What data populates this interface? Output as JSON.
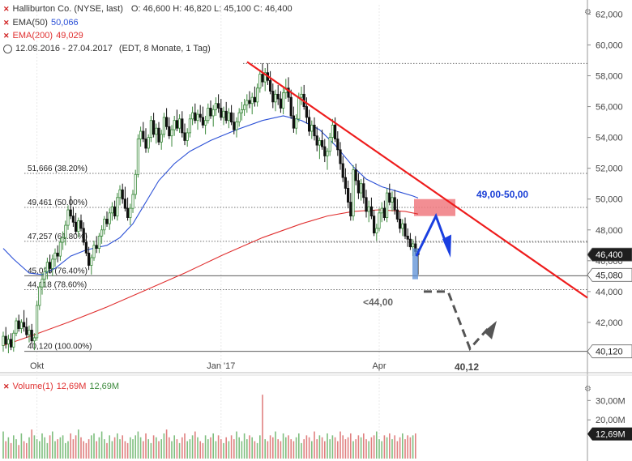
{
  "header": {
    "symbol": "Halliburton Co. (NYSE, last)",
    "ohlc": "O: 46,600   H: 46,820   L: 45,100   C: 46,400",
    "ema50_label": "EMA(50)",
    "ema50_value": "50,066",
    "ema200_label": "EMA(200)",
    "ema200_value": "49,029",
    "range_text": "12.09.2016 - 27.04.2017",
    "range_info": "(EDT, 8 Monate, 1 Tag)"
  },
  "volume_header": {
    "label": "Volume(1)",
    "value1": "12,69M",
    "value2": "12,69M"
  },
  "colors": {
    "up": "#3c8a3c",
    "down": "#111111",
    "ema50": "#2a4fd6",
    "ema200": "#e03030",
    "trendline": "#ee1c1c",
    "vol_up": "#7fbf7f",
    "vol_down": "#e08080",
    "target_zone": "#f07a80",
    "arrow_blue": "#1a3fe0",
    "arrow_grey": "#555555",
    "last_marker": "#1e1e1e"
  },
  "chart_data": {
    "type": "candlestick",
    "y_axis": {
      "min": 39,
      "max": 62.6,
      "ticks": [
        "62,000",
        "60,000",
        "58,000",
        "56,000",
        "54,000",
        "52,000",
        "50,000",
        "48,000",
        "46,000",
        "44,000",
        "42,000",
        "40,000"
      ],
      "tick_values": [
        62,
        60,
        58,
        56,
        54,
        52,
        50,
        48,
        46,
        44,
        42,
        40
      ]
    },
    "x_axis": {
      "labels": [
        "Okt",
        "Jan '17",
        "Apr"
      ],
      "label_index": [
        13,
        84,
        145
      ]
    },
    "fib_levels": [
      {
        "value": 51.666,
        "label": "51,666 (38.20%)"
      },
      {
        "value": 49.461,
        "label": "49,461 (50.00%)"
      },
      {
        "value": 47.257,
        "label": "47,257 (61.80%)"
      },
      {
        "value": 45.029,
        "label": "45,029 (76.40%)"
      },
      {
        "value": 44.118,
        "label": "44,118 (78.60%)"
      },
      {
        "value": 40.12,
        "label": "40,120 (100.00%)"
      }
    ],
    "price_markers": [
      {
        "value": 58.8,
        "label": ""
      },
      {
        "value": 47.2,
        "label": ""
      },
      {
        "value": 45.08,
        "label": "45,080"
      },
      {
        "value": 46.4,
        "label": "46,400"
      },
      {
        "value": 40.12,
        "label": "40,120"
      }
    ],
    "annotations": [
      {
        "text": "49,00-50,00"
      },
      {
        "text": "<44,00"
      },
      {
        "text": "40,12"
      }
    ],
    "candles": [
      [
        40.5,
        41.4,
        40.1,
        41.1
      ],
      [
        41.1,
        41.7,
        40.3,
        40.6
      ],
      [
        40.6,
        41.2,
        40.0,
        40.9
      ],
      [
        40.9,
        41.3,
        40.2,
        40.4
      ],
      [
        40.4,
        41.5,
        40.1,
        41.3
      ],
      [
        41.3,
        42.3,
        41.1,
        42.1
      ],
      [
        42.1,
        42.5,
        41.4,
        41.6
      ],
      [
        41.6,
        42.2,
        41.3,
        42.0
      ],
      [
        42.0,
        42.8,
        41.4,
        41.7
      ],
      [
        41.7,
        42.3,
        41.0,
        41.2
      ],
      [
        41.2,
        41.8,
        40.7,
        41.5
      ],
      [
        41.5,
        41.9,
        40.6,
        40.8
      ],
      [
        40.8,
        41.3,
        40.2,
        41.0
      ],
      [
        41.0,
        43.4,
        40.8,
        43.1
      ],
      [
        43.1,
        44.6,
        42.8,
        44.3
      ],
      [
        44.3,
        45.2,
        43.8,
        44.8
      ],
      [
        44.8,
        45.6,
        44.3,
        45.3
      ],
      [
        45.3,
        46.2,
        44.8,
        45.9
      ],
      [
        45.9,
        46.4,
        45.2,
        45.5
      ],
      [
        45.5,
        46.4,
        45.0,
        46.1
      ],
      [
        46.1,
        46.8,
        45.6,
        46.5
      ],
      [
        46.5,
        47.0,
        45.9,
        46.3
      ],
      [
        46.3,
        47.5,
        46.0,
        47.2
      ],
      [
        47.2,
        47.9,
        46.7,
        47.5
      ],
      [
        47.5,
        48.6,
        47.0,
        48.3
      ],
      [
        48.3,
        49.6,
        48.0,
        49.3
      ],
      [
        49.3,
        50.2,
        48.7,
        48.9
      ],
      [
        48.9,
        49.5,
        48.2,
        48.5
      ],
      [
        48.5,
        49.1,
        47.7,
        47.9
      ],
      [
        47.9,
        48.8,
        47.5,
        48.6
      ],
      [
        48.6,
        49.0,
        47.9,
        48.1
      ],
      [
        48.1,
        48.5,
        47.0,
        47.2
      ],
      [
        47.2,
        47.8,
        46.3,
        46.5
      ],
      [
        46.5,
        46.9,
        45.4,
        45.7
      ],
      [
        45.7,
        46.4,
        45.1,
        46.2
      ],
      [
        46.2,
        47.3,
        46.0,
        47.0
      ],
      [
        47.0,
        47.6,
        46.5,
        46.8
      ],
      [
        46.8,
        47.8,
        46.5,
        47.6
      ],
      [
        47.6,
        48.3,
        47.1,
        48.0
      ],
      [
        48.0,
        48.9,
        47.7,
        48.7
      ],
      [
        48.7,
        49.2,
        48.2,
        48.4
      ],
      [
        48.4,
        49.4,
        48.0,
        49.1
      ],
      [
        49.1,
        49.8,
        48.6,
        49.5
      ],
      [
        49.5,
        49.9,
        48.7,
        48.9
      ],
      [
        48.9,
        50.4,
        48.6,
        50.1
      ],
      [
        50.1,
        50.9,
        49.6,
        50.6
      ],
      [
        50.6,
        51.0,
        49.7,
        50.0
      ],
      [
        50.0,
        50.8,
        49.2,
        49.4
      ],
      [
        49.4,
        50.1,
        48.6,
        48.8
      ],
      [
        48.8,
        49.7,
        48.3,
        49.4
      ],
      [
        49.4,
        50.6,
        49.1,
        50.3
      ],
      [
        50.3,
        51.9,
        50.0,
        51.6
      ],
      [
        51.6,
        54.2,
        51.4,
        53.9
      ],
      [
        53.9,
        54.7,
        53.4,
        54.4
      ],
      [
        54.4,
        55.0,
        53.7,
        53.9
      ],
      [
        53.9,
        54.6,
        53.0,
        53.3
      ],
      [
        53.3,
        54.2,
        53.0,
        54.0
      ],
      [
        54.0,
        55.4,
        53.7,
        55.1
      ],
      [
        55.1,
        55.6,
        54.0,
        54.2
      ],
      [
        54.2,
        54.9,
        53.6,
        54.6
      ],
      [
        54.6,
        55.0,
        53.5,
        53.7
      ],
      [
        53.7,
        54.5,
        53.2,
        54.2
      ],
      [
        54.2,
        55.6,
        54.0,
        55.3
      ],
      [
        55.3,
        55.9,
        54.5,
        54.7
      ],
      [
        54.7,
        55.3,
        53.9,
        54.1
      ],
      [
        54.1,
        54.8,
        53.4,
        54.5
      ],
      [
        54.5,
        55.4,
        54.1,
        55.1
      ],
      [
        55.1,
        55.8,
        54.4,
        54.6
      ],
      [
        54.6,
        55.5,
        54.3,
        55.2
      ],
      [
        55.2,
        55.7,
        54.0,
        54.3
      ],
      [
        54.3,
        54.9,
        53.5,
        53.8
      ],
      [
        53.8,
        54.6,
        53.4,
        54.3
      ],
      [
        54.3,
        55.5,
        54.0,
        55.2
      ],
      [
        55.2,
        56.0,
        54.8,
        55.6
      ],
      [
        55.6,
        56.2,
        54.9,
        55.1
      ],
      [
        55.1,
        55.8,
        54.5,
        55.5
      ],
      [
        55.5,
        56.1,
        55.0,
        55.3
      ],
      [
        55.3,
        56.0,
        54.6,
        54.8
      ],
      [
        54.8,
        55.4,
        54.2,
        55.1
      ],
      [
        55.1,
        56.2,
        54.9,
        55.9
      ],
      [
        55.9,
        56.4,
        55.2,
        55.4
      ],
      [
        55.4,
        56.1,
        54.7,
        55.8
      ],
      [
        55.8,
        56.6,
        55.4,
        56.2
      ],
      [
        56.2,
        56.8,
        55.6,
        55.9
      ],
      [
        55.9,
        56.5,
        55.1,
        55.3
      ],
      [
        55.3,
        56.0,
        54.8,
        55.7
      ],
      [
        55.7,
        56.3,
        54.9,
        55.1
      ],
      [
        55.1,
        55.9,
        54.6,
        55.6
      ],
      [
        55.6,
        56.1,
        54.8,
        55.0
      ],
      [
        55.0,
        55.6,
        54.2,
        54.5
      ],
      [
        54.5,
        55.3,
        54.0,
        55.0
      ],
      [
        55.0,
        55.9,
        54.7,
        55.6
      ],
      [
        55.6,
        56.3,
        55.1,
        55.8
      ],
      [
        55.8,
        56.5,
        55.4,
        56.1
      ],
      [
        56.1,
        56.8,
        55.6,
        56.4
      ],
      [
        56.4,
        57.0,
        55.9,
        56.2
      ],
      [
        56.2,
        56.9,
        55.5,
        56.6
      ],
      [
        56.6,
        57.3,
        56.0,
        56.3
      ],
      [
        56.3,
        57.5,
        56.0,
        57.2
      ],
      [
        57.2,
        58.4,
        56.9,
        58.1
      ],
      [
        58.1,
        58.8,
        57.3,
        57.6
      ],
      [
        57.6,
        58.5,
        57.0,
        58.2
      ],
      [
        58.2,
        58.8,
        57.4,
        57.7
      ],
      [
        57.7,
        58.3,
        56.8,
        57.0
      ],
      [
        57.0,
        57.5,
        55.9,
        56.3
      ],
      [
        56.3,
        57.1,
        55.7,
        56.8
      ],
      [
        56.8,
        57.4,
        56.1,
        56.5
      ],
      [
        56.5,
        57.0,
        55.6,
        55.9
      ],
      [
        55.9,
        57.2,
        55.5,
        56.9
      ],
      [
        56.9,
        57.8,
        56.5,
        57.2
      ],
      [
        57.2,
        57.9,
        56.3,
        56.6
      ],
      [
        56.6,
        57.1,
        55.2,
        55.4
      ],
      [
        55.4,
        56.0,
        54.3,
        54.6
      ],
      [
        54.6,
        55.5,
        54.2,
        55.2
      ],
      [
        55.2,
        56.9,
        55.0,
        56.6
      ],
      [
        56.6,
        57.3,
        56.1,
        56.8
      ],
      [
        56.8,
        57.4,
        55.8,
        56.0
      ],
      [
        56.0,
        56.6,
        54.9,
        55.3
      ],
      [
        55.3,
        55.8,
        54.1,
        54.4
      ],
      [
        54.4,
        55.1,
        53.9,
        54.8
      ],
      [
        54.8,
        55.3,
        53.8,
        54.1
      ],
      [
        54.1,
        54.7,
        53.1,
        53.5
      ],
      [
        53.5,
        54.0,
        52.6,
        53.8
      ],
      [
        53.8,
        54.5,
        53.2,
        53.4
      ],
      [
        53.4,
        53.9,
        52.4,
        52.8
      ],
      [
        52.8,
        53.3,
        51.9,
        53.1
      ],
      [
        53.1,
        54.3,
        52.8,
        54.0
      ],
      [
        54.0,
        55.2,
        53.6,
        54.8
      ],
      [
        54.8,
        55.3,
        53.7,
        53.9
      ],
      [
        53.9,
        54.4,
        52.8,
        53.2
      ],
      [
        53.2,
        53.7,
        51.9,
        52.3
      ],
      [
        52.3,
        52.8,
        51.1,
        51.4
      ],
      [
        51.4,
        52.0,
        50.3,
        50.7
      ],
      [
        50.7,
        51.2,
        49.4,
        49.8
      ],
      [
        49.8,
        50.4,
        48.6,
        48.9
      ],
      [
        48.9,
        52.2,
        48.6,
        51.9
      ],
      [
        51.9,
        52.3,
        50.9,
        51.2
      ],
      [
        51.2,
        51.7,
        50.0,
        50.4
      ],
      [
        50.4,
        51.3,
        49.9,
        51.0
      ],
      [
        51.0,
        51.4,
        49.7,
        50.1
      ],
      [
        50.1,
        50.6,
        48.8,
        49.2
      ],
      [
        49.2,
        49.9,
        48.5,
        49.5
      ],
      [
        49.5,
        50.1,
        48.7,
        48.9
      ],
      [
        48.9,
        49.3,
        47.6,
        47.8
      ],
      [
        47.8,
        48.4,
        47.3,
        48.1
      ],
      [
        48.1,
        49.4,
        47.9,
        49.1
      ],
      [
        49.1,
        49.8,
        48.5,
        49.4
      ],
      [
        49.4,
        49.9,
        48.6,
        48.8
      ],
      [
        48.8,
        50.7,
        48.5,
        50.4
      ],
      [
        50.4,
        51.0,
        49.6,
        49.8
      ],
      [
        49.8,
        50.5,
        49.2,
        50.1
      ],
      [
        50.1,
        50.6,
        49.0,
        49.3
      ],
      [
        49.3,
        50.0,
        48.5,
        48.7
      ],
      [
        48.7,
        49.2,
        47.8,
        48.1
      ],
      [
        48.1,
        48.7,
        47.6,
        48.4
      ],
      [
        48.4,
        48.8,
        47.4,
        47.6
      ],
      [
        47.6,
        48.1,
        46.9,
        47.4
      ],
      [
        47.4,
        47.8,
        46.7,
        46.9
      ],
      [
        46.9,
        47.4,
        46.3,
        47.1
      ],
      [
        47.1,
        47.6,
        46.4,
        46.6
      ],
      [
        46.6,
        46.8,
        45.1,
        46.4
      ]
    ],
    "ema50": [
      [
        0,
        46.8
      ],
      [
        4,
        46.1
      ],
      [
        10,
        45.2
      ],
      [
        15,
        45.1
      ],
      [
        20,
        45.5
      ],
      [
        26,
        46.3
      ],
      [
        32,
        46.7
      ],
      [
        40,
        47.0
      ],
      [
        45,
        47.5
      ],
      [
        50,
        48.4
      ],
      [
        55,
        49.8
      ],
      [
        60,
        51.2
      ],
      [
        66,
        52.3
      ],
      [
        72,
        53.1
      ],
      [
        80,
        53.8
      ],
      [
        90,
        54.5
      ],
      [
        100,
        55.1
      ],
      [
        108,
        55.4
      ],
      [
        115,
        55.1
      ],
      [
        122,
        54.5
      ],
      [
        128,
        53.5
      ],
      [
        135,
        52.1
      ],
      [
        140,
        51.3
      ],
      [
        146,
        50.8
      ],
      [
        152,
        50.5
      ],
      [
        158,
        50.2
      ],
      [
        160,
        50.07
      ]
    ],
    "ema200": [
      [
        0,
        40.5
      ],
      [
        12,
        41.2
      ],
      [
        25,
        42.0
      ],
      [
        40,
        43.0
      ],
      [
        55,
        44.1
      ],
      [
        70,
        45.2
      ],
      [
        85,
        46.4
      ],
      [
        100,
        47.5
      ],
      [
        115,
        48.4
      ],
      [
        125,
        48.9
      ],
      [
        135,
        49.2
      ],
      [
        145,
        49.3
      ],
      [
        155,
        49.2
      ],
      [
        160,
        49.03
      ]
    ],
    "volume": {
      "ticks": [
        "30,00M",
        "20,00M",
        "12,69M"
      ],
      "tick_values": [
        30,
        20,
        12.69
      ],
      "max": 36,
      "values": [
        14,
        9,
        11,
        8,
        12,
        10,
        7,
        13,
        9,
        8,
        11,
        15,
        12,
        10,
        9,
        13,
        11,
        8,
        12,
        14,
        9,
        10,
        11,
        12,
        8,
        9,
        13,
        10,
        12,
        15,
        11,
        9,
        8,
        10,
        12,
        13,
        9,
        11,
        14,
        10,
        8,
        12,
        9,
        11,
        13,
        10,
        12,
        9,
        8,
        11,
        10,
        12,
        14,
        11,
        9,
        13,
        10,
        8,
        12,
        11,
        9,
        10,
        13,
        15,
        11,
        9,
        12,
        10,
        8,
        11,
        13,
        9,
        10,
        12,
        14,
        11,
        9,
        8,
        12,
        10,
        11,
        13,
        9,
        12,
        10,
        8,
        11,
        9,
        12,
        10,
        14,
        11,
        9,
        13,
        10,
        12,
        11,
        9,
        8,
        12,
        33,
        10,
        9,
        12,
        11,
        14,
        10,
        9,
        13,
        11,
        12,
        10,
        9,
        11,
        13,
        8,
        10,
        12,
        11,
        9,
        14,
        10,
        12,
        11,
        9,
        13,
        10,
        12,
        11,
        9,
        14,
        12,
        10,
        11,
        13,
        9,
        10,
        12,
        11,
        13,
        10,
        9,
        11,
        12,
        14,
        10,
        9,
        12,
        11,
        13,
        10,
        12,
        9,
        11,
        13,
        10,
        12,
        11,
        12,
        13
      ]
    }
  }
}
